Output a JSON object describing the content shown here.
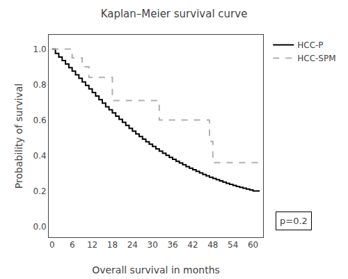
{
  "chart_data": {
    "type": "step",
    "title": "Kaplan–Meier survival curve",
    "xlabel": "Overall survival in months",
    "ylabel": "Probability of survival",
    "xlim": [
      -1,
      63
    ],
    "ylim": [
      -0.06,
      1.08
    ],
    "xticks": [
      0,
      6,
      12,
      18,
      24,
      30,
      36,
      42,
      48,
      54,
      60
    ],
    "yticks": [
      {
        "value": 0,
        "label": "0.0"
      },
      0.2,
      0.4,
      0.6,
      0.8,
      {
        "value": 1,
        "label": "1.0"
      }
    ],
    "grid": false,
    "legend": "right",
    "annotation": "p=0.2",
    "series": [
      {
        "name": "HCC-P",
        "color": "#000000",
        "line_style": "solid",
        "x": [
          0,
          1,
          2,
          3,
          4,
          5,
          6,
          7,
          8,
          9,
          10,
          11,
          12,
          13,
          14,
          15,
          16,
          17,
          18,
          19,
          20,
          21,
          22,
          23,
          24,
          25,
          26,
          27,
          28,
          29,
          30,
          31,
          32,
          33,
          34,
          35,
          36,
          37,
          38,
          39,
          40,
          41,
          42,
          43,
          44,
          45,
          46,
          47,
          48,
          49,
          50,
          51,
          52,
          53,
          54,
          55,
          56,
          57,
          58,
          59,
          60,
          62
        ],
        "values": [
          1.0,
          0.975,
          0.955,
          0.935,
          0.915,
          0.895,
          0.875,
          0.855,
          0.835,
          0.815,
          0.795,
          0.775,
          0.755,
          0.735,
          0.715,
          0.695,
          0.675,
          0.658,
          0.64,
          0.622,
          0.604,
          0.587,
          0.57,
          0.553,
          0.537,
          0.522,
          0.507,
          0.492,
          0.478,
          0.464,
          0.451,
          0.438,
          0.425,
          0.413,
          0.401,
          0.39,
          0.379,
          0.368,
          0.358,
          0.348,
          0.338,
          0.329,
          0.32,
          0.311,
          0.302,
          0.294,
          0.286,
          0.278,
          0.271,
          0.264,
          0.257,
          0.25,
          0.244,
          0.238,
          0.232,
          0.226,
          0.221,
          0.216,
          0.211,
          0.206,
          0.201,
          0.201
        ]
      },
      {
        "name": "HCC-SPM",
        "color": "#b0b0b0",
        "line_style": "dashed",
        "x": [
          0,
          6,
          9,
          11,
          14,
          18,
          30,
          32,
          42,
          47,
          48,
          60,
          62
        ],
        "values": [
          1.0,
          0.95,
          0.9,
          0.84,
          0.84,
          0.71,
          0.71,
          0.6,
          0.6,
          0.48,
          0.36,
          0.36,
          0.36
        ]
      }
    ]
  }
}
